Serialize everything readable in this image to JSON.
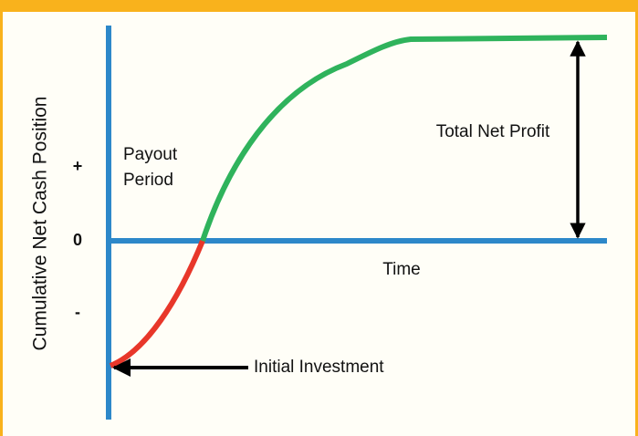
{
  "axis": {
    "y_label": "Cumulative Net Cash Position",
    "y_markers": [
      "+",
      "0",
      "-"
    ],
    "x_label": "Time"
  },
  "annotations": {
    "payout_period": [
      "Payout",
      "Period"
    ],
    "total_net_profit": "Total Net Profit",
    "initial_investment": "Initial Investment"
  }
}
